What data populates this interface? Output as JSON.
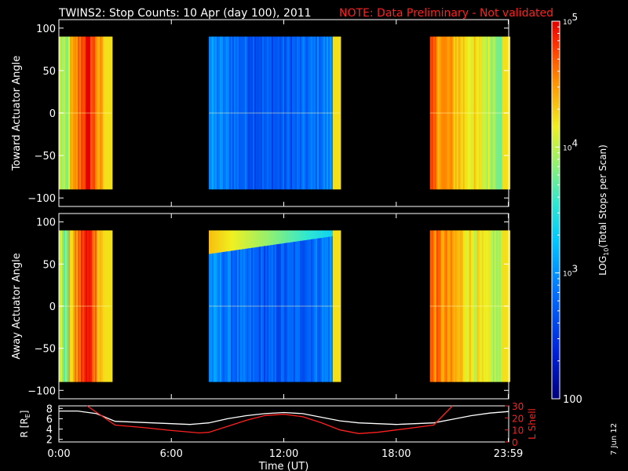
{
  "title": "TWINS2: Stop Counts: 10 Apr (day 100), 2011",
  "note": "NOTE: Data Preliminary - Not validated",
  "date_stamp": "7 Jun 12",
  "colors": {
    "background": "#000000",
    "axes": "#ffffff",
    "note": "#ff2020",
    "lshell": "#ff2020",
    "radius": "#ffffff"
  },
  "chart_data": [
    {
      "type": "heatmap",
      "name": "toward",
      "ylabel": "Toward Actuator Angle",
      "ylim": [
        -110,
        110
      ],
      "yticks": [
        100,
        50,
        0,
        -50,
        -100
      ],
      "xlim": [
        0,
        24
      ],
      "data_angle_range": [
        -90,
        90
      ],
      "segments": [
        {
          "start": 0.0,
          "end": 2.8,
          "level": "high",
          "edge_band": true
        },
        {
          "start": 8.0,
          "end": 15.0,
          "level": "low",
          "edge_band": true
        },
        {
          "start": 19.8,
          "end": 24.0,
          "level": "high-decreasing",
          "edge_band": true
        }
      ]
    },
    {
      "type": "heatmap",
      "name": "away",
      "ylabel": "Away Actuator Angle",
      "ylim": [
        -110,
        110
      ],
      "yticks": [
        100,
        50,
        0,
        -50,
        -100
      ],
      "xlim": [
        0,
        24
      ],
      "data_angle_range": [
        -90,
        90
      ],
      "segments": [
        {
          "start": 0.0,
          "end": 2.8,
          "level": "high",
          "edge_band": true
        },
        {
          "start": 8.0,
          "end": 15.0,
          "level": "low-with-top-band",
          "edge_band": true
        },
        {
          "start": 19.8,
          "end": 24.0,
          "level": "high-decreasing",
          "edge_band": true
        }
      ]
    },
    {
      "type": "line",
      "name": "orbit",
      "xlabel": "Time (UT)",
      "xticks": [
        {
          "value": 0,
          "label": "0:00"
        },
        {
          "value": 6,
          "label": "6:00"
        },
        {
          "value": 12,
          "label": "12:00"
        },
        {
          "value": 18,
          "label": "18:00"
        },
        {
          "value": 23.98,
          "label": "23:59"
        }
      ],
      "xlim": [
        0,
        24
      ],
      "left_axis": {
        "label": "R [RE]",
        "label_main": "R [R",
        "label_sub": "E",
        "label_end": "]",
        "ylim": [
          1.5,
          8.5
        ],
        "yticks": [
          2,
          4,
          6,
          8
        ]
      },
      "right_axis": {
        "label": "L Shell",
        "ylim": [
          0,
          30
        ],
        "yticks": [
          0,
          10,
          20,
          30
        ]
      },
      "series": [
        {
          "name": "R [RE]",
          "axis": "left",
          "color": "#ffffff",
          "x": [
            0,
            1,
            2,
            3,
            5,
            7,
            8,
            9,
            10,
            11,
            12,
            13,
            14,
            15,
            16,
            18,
            20,
            21,
            22,
            23,
            24
          ],
          "y": [
            7.5,
            7.5,
            7.0,
            5.5,
            5.2,
            4.9,
            5.2,
            6.0,
            6.6,
            7.0,
            7.2,
            7.0,
            6.3,
            5.6,
            5.2,
            4.9,
            5.2,
            5.9,
            6.6,
            7.1,
            7.4
          ]
        },
        {
          "name": "L Shell",
          "axis": "right",
          "color": "#ff2020",
          "x": [
            1.5,
            3.0,
            4.5,
            6.0,
            7.5,
            8.0,
            9.0,
            10.0,
            11.0,
            12.0,
            13.0,
            14.0,
            15.0,
            16.0,
            17.0,
            18.0,
            19.0,
            20.0,
            21.0
          ],
          "y": [
            30,
            14,
            12,
            9.5,
            7.5,
            8,
            13,
            18,
            22,
            23,
            21,
            16,
            10,
            7,
            8,
            10,
            12,
            14,
            30
          ]
        }
      ]
    }
  ],
  "colorbar": {
    "label_main": "LOG",
    "label_sub": "10",
    "label_rest": "(Total Stops per Scan)",
    "ticks": [
      {
        "value": 100,
        "label": "100",
        "kind": "plain"
      },
      {
        "value": 1000,
        "label_base": "10",
        "label_exp": "3",
        "kind": "power"
      },
      {
        "value": 10000,
        "label_base": "10",
        "label_exp": "4",
        "kind": "power"
      },
      {
        "value": 100000,
        "label_base": "10",
        "label_exp": "5",
        "kind": "power"
      }
    ],
    "range": [
      100,
      100000
    ],
    "scale": "log"
  }
}
